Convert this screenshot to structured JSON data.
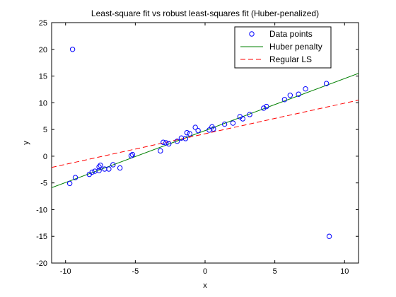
{
  "chart_data": {
    "type": "scatter",
    "title": "Least-square fit vs robust least-squares fit (Huber-penalized)",
    "xlabel": "x",
    "ylabel": "y",
    "xlim": [
      -11,
      11
    ],
    "ylim": [
      -20,
      25
    ],
    "xticks": [
      -10,
      -5,
      0,
      5,
      10
    ],
    "yticks": [
      -20,
      -15,
      -10,
      -5,
      0,
      5,
      10,
      15,
      20,
      25
    ],
    "grid": false,
    "legend_position": "top-right",
    "colors": {
      "points": "#0000ff",
      "huber": "#008000",
      "ls": "#ff0000",
      "axes": "#000000",
      "background": "#ffffff"
    },
    "series": [
      {
        "name": "Data points",
        "kind": "markers",
        "marker": "o",
        "points": [
          [
            -9.7,
            -5.1
          ],
          [
            -9.5,
            20.0
          ],
          [
            -9.3,
            -4.0
          ],
          [
            -8.3,
            -3.4
          ],
          [
            -8.1,
            -3.0
          ],
          [
            -7.9,
            -2.8
          ],
          [
            -7.6,
            -2.7
          ],
          [
            -7.6,
            -2.0
          ],
          [
            -7.5,
            -1.7
          ],
          [
            -7.2,
            -2.4
          ],
          [
            -6.9,
            -2.4
          ],
          [
            -6.6,
            -1.6
          ],
          [
            -6.1,
            -2.2
          ],
          [
            -5.3,
            0.1
          ],
          [
            -5.2,
            0.3
          ],
          [
            -3.2,
            1.0
          ],
          [
            -3.0,
            2.6
          ],
          [
            -2.8,
            2.5
          ],
          [
            -2.6,
            2.3
          ],
          [
            -2.0,
            2.8
          ],
          [
            -1.7,
            3.4
          ],
          [
            -1.4,
            3.3
          ],
          [
            -1.3,
            4.4
          ],
          [
            -1.1,
            4.2
          ],
          [
            -0.7,
            5.4
          ],
          [
            -0.5,
            4.8
          ],
          [
            0.3,
            4.9
          ],
          [
            0.5,
            5.5
          ],
          [
            0.6,
            5.1
          ],
          [
            1.4,
            6.0
          ],
          [
            2.0,
            6.2
          ],
          [
            2.5,
            7.4
          ],
          [
            2.7,
            7.0
          ],
          [
            3.2,
            7.8
          ],
          [
            4.2,
            9.0
          ],
          [
            4.4,
            9.3
          ],
          [
            5.7,
            10.6
          ],
          [
            6.1,
            11.4
          ],
          [
            6.7,
            11.6
          ],
          [
            7.2,
            12.6
          ],
          [
            8.7,
            13.6
          ],
          [
            8.9,
            -15.0
          ]
        ]
      },
      {
        "name": "Huber penalty",
        "kind": "line",
        "style": "solid",
        "x": [
          -11,
          11
        ],
        "y": [
          -5.9,
          15.5
        ]
      },
      {
        "name": "Regular LS",
        "kind": "line",
        "style": "dashed",
        "x": [
          -11,
          11
        ],
        "y": [
          -2.1,
          10.5
        ]
      }
    ]
  }
}
